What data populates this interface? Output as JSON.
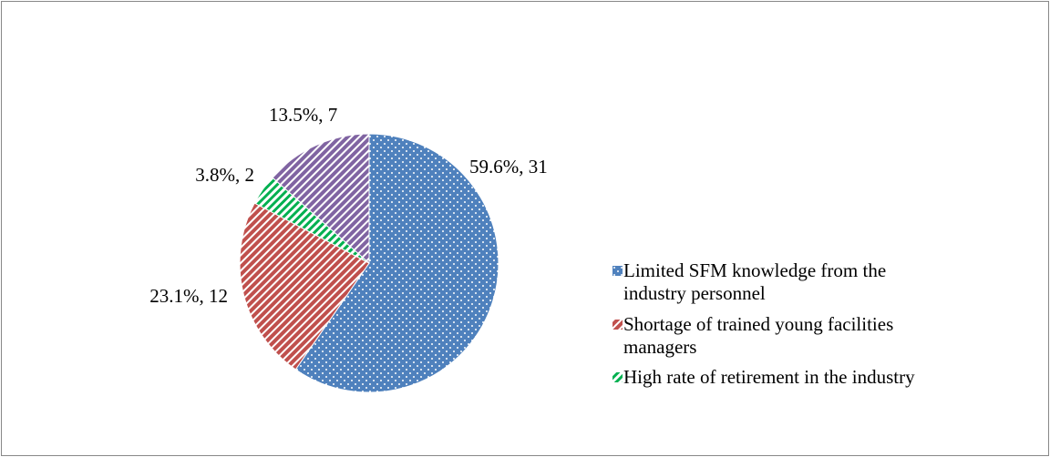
{
  "chart_data": {
    "type": "pie",
    "categories": [
      "Limited SFM knowledge from the industry personnel",
      "Shortage of trained young facilities managers",
      "High rate of retirement in the industry",
      null
    ],
    "values": [
      31,
      12,
      2,
      7
    ],
    "value_labels": [
      "59.6%, 31",
      "23.1%, 12",
      "3.8%, 2",
      "13.5%, 7"
    ],
    "colors": [
      "#4f81bd",
      "#c0504d",
      "#00b050",
      "#8064a2"
    ],
    "legend": "right"
  }
}
